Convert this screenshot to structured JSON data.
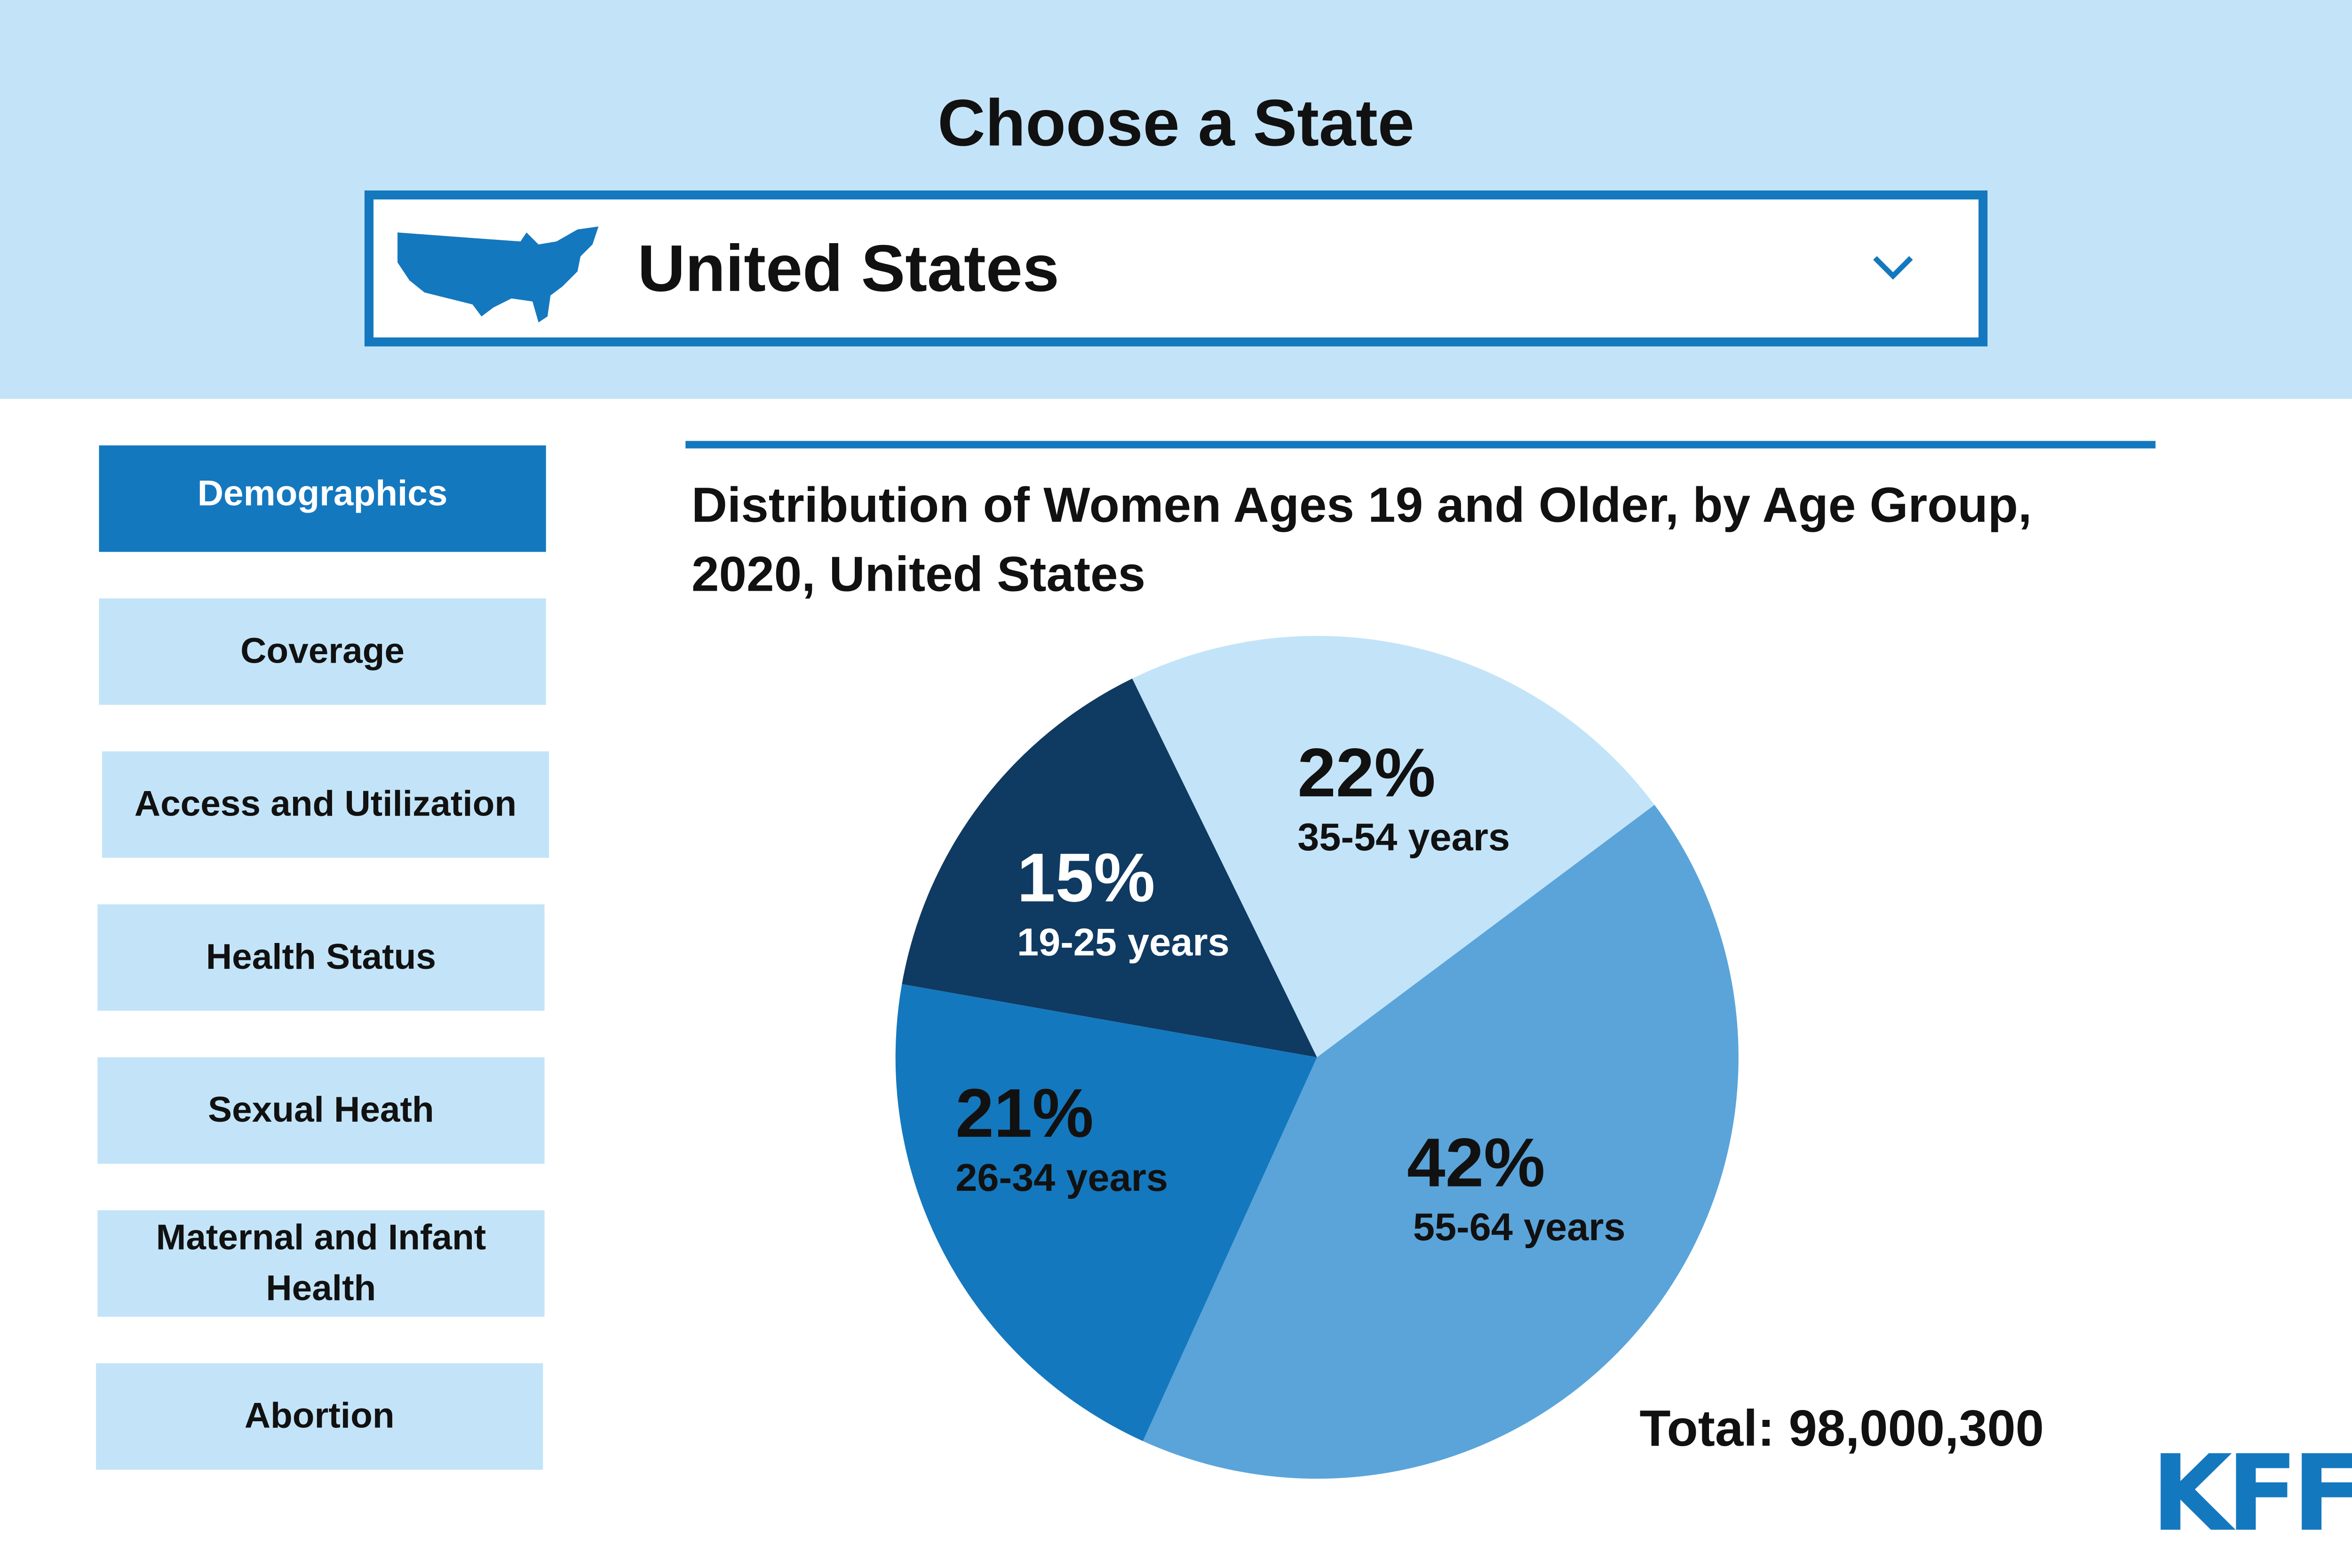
{
  "header": {
    "title": "Choose a State",
    "selected": "United States"
  },
  "nav": [
    "Demographics",
    "Coverage",
    "Access and Utilization",
    "Health Status",
    "Sexual Heath",
    "Maternal and Infant Health",
    "Abortion"
  ],
  "logo": "KFF",
  "chart_data": {
    "type": "pie",
    "title": "Distribution of Women Ages 19 and Older, by Age Group, 2020, United States",
    "categories": [
      "19-25 years",
      "35-54 years",
      "55-64 years",
      "26-34 years"
    ],
    "values": [
      15,
      22,
      42,
      21
    ],
    "value_labels": [
      "15%",
      "22%",
      "42%",
      "21%"
    ],
    "colors": [
      "#0f3a62",
      "#c3e4f8",
      "#5aa4da",
      "#1478be"
    ],
    "annotation": "Total: 98,000,300"
  }
}
